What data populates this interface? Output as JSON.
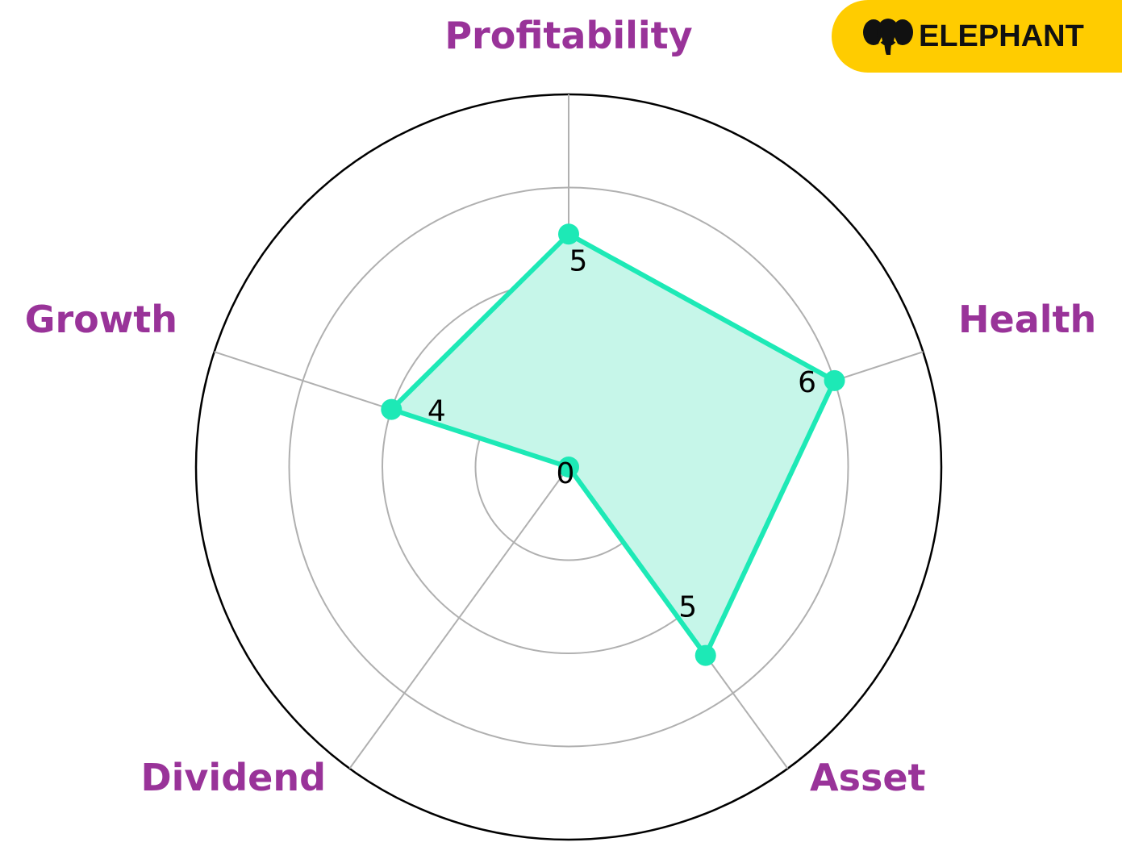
{
  "brand": {
    "name": "ELEPHANT",
    "icon": "elephant-icon",
    "background": "#FFCC00"
  },
  "chart_data": {
    "type": "radar",
    "categories": [
      "Profitability",
      "Health",
      "Asset",
      "Dividend",
      "Growth"
    ],
    "values": [
      5,
      6,
      5,
      0,
      4
    ],
    "value_labels": [
      "5",
      "6",
      "5",
      "0",
      "4"
    ],
    "rlim": [
      0,
      8
    ],
    "grid_rings": [
      2,
      4,
      6,
      8
    ],
    "grid": true,
    "colors": {
      "series": "#1DE9B6",
      "fill": "#C6F6E9",
      "label": "#993399",
      "grid": "#B0B0B0",
      "outer": "#000000"
    }
  }
}
